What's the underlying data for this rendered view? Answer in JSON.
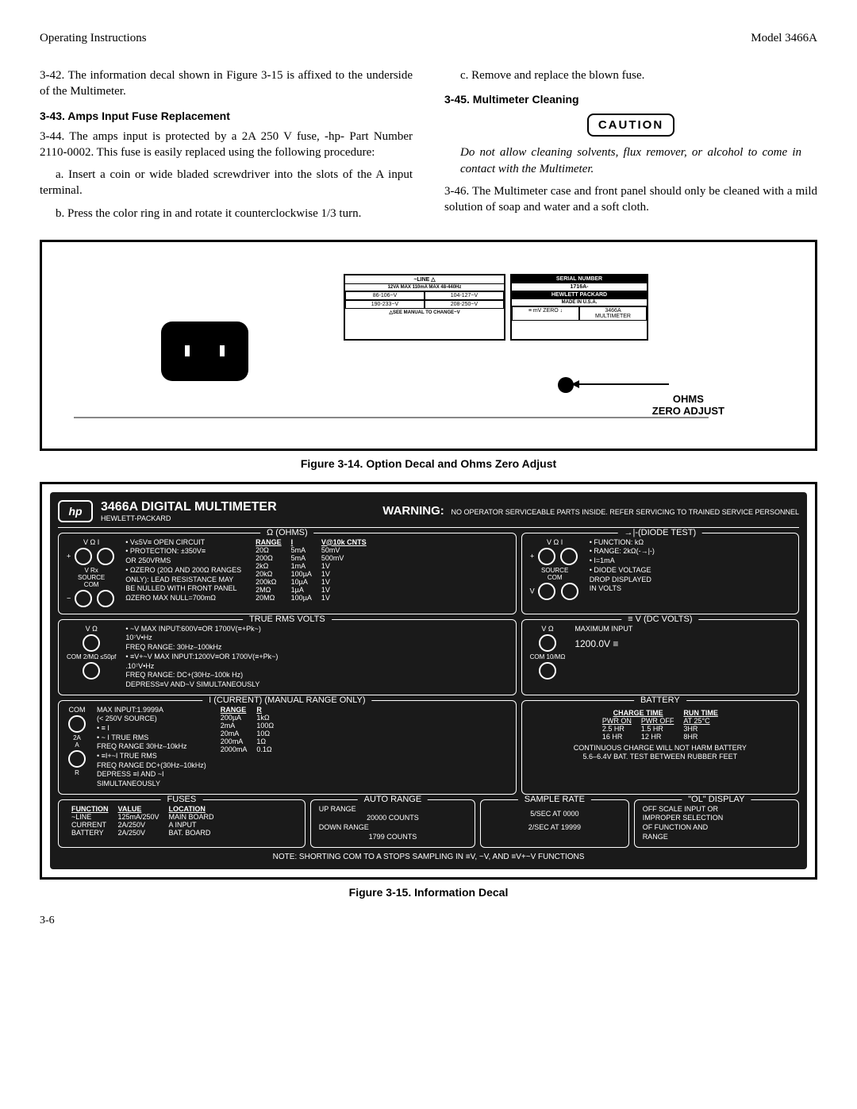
{
  "header": {
    "left": "Operating Instructions",
    "right": "Model 3466A"
  },
  "body": {
    "p342": "3-42. The information decal shown in Figure 3-15 is affixed to the underside of the Multimeter.",
    "h343": "3-43. Amps Input Fuse Replacement",
    "p344": "3-44. The amps input is protected by a 2A 250 V fuse, -hp- Part Number 2110-0002. This fuse is easily replaced using the following procedure:",
    "p344a": "a. Insert a coin or wide bladed screwdriver into the slots of the A input terminal.",
    "p344b": "b. Press the color ring in and rotate it counterclockwise 1/3 turn.",
    "p344c": "c. Remove and replace the blown fuse.",
    "h345": "3-45. Multimeter Cleaning",
    "caution": "CAUTION",
    "caution_body": "Do not allow cleaning solvents, flux remover, or alcohol to come in contact with the Multimeter.",
    "p346": "3-46. The Multimeter case and front panel should only be cleaned with a mild solution of soap and water and a soft cloth."
  },
  "fig314": {
    "caption": "Figure 3-14. Option Decal and Ohms Zero Adjust",
    "line_header": "~LINE △",
    "line_sub": "12VA MAX 110mA MAX 48-440Hz",
    "v1": "86-106~V",
    "v2": "104-127~V",
    "v3": "190-233~V",
    "v4": "208-250~V",
    "see_manual": "△SEE MANUAL TO CHANGE~V",
    "serial_h": "SERIAL NUMBER",
    "serial_v": "1716A-",
    "hp": "HEWLETT    PACKARD",
    "made": "MADE IN U.S.A.",
    "mvzero": "≡ mV ZERO ↓",
    "model": "3466A",
    "mult": "MULTIMETER",
    "ohms_label": "OHMS\nZERO ADJUST"
  },
  "fig315": {
    "caption": "Figure 3-15. Information Decal",
    "title": "3466A DIGITAL MULTIMETER",
    "subtitle": "HEWLETT-PACKARD",
    "warning_label": "WARNING:",
    "warning_text": "NO OPERATOR SERVICEABLE PARTS INSIDE. REFER SERVICING TO TRAINED SERVICE PERSONNEL",
    "ohms": {
      "title": "Ω (OHMS)",
      "jack_labels": "V Ω    I",
      "source": "SOURCE",
      "com": "COM",
      "vrx": "V Rx",
      "notes": [
        "• V≤5V≡ OPEN CIRCUIT",
        "• PROTECTION: ±350V≡",
        "  OR 250VRMS",
        "• ΩZERO (20Ω AND 200Ω RANGES",
        "  ONLY): LEAD RESISTANCE MAY",
        "  BE NULLED WITH FRONT PANEL",
        "  ΩZERO MAX NULL=700mΩ"
      ],
      "table": {
        "headers": [
          "RANGE",
          "I",
          "V@10k CNTS"
        ],
        "rows": [
          [
            "20Ω",
            "5mA",
            "50mV"
          ],
          [
            "200Ω",
            "5mA",
            "500mV"
          ],
          [
            "2kΩ",
            "1mA",
            "1V"
          ],
          [
            "20kΩ",
            "100µA",
            "1V"
          ],
          [
            "200kΩ",
            "10µA",
            "1V"
          ],
          [
            "2MΩ",
            "1µA",
            "1V"
          ],
          [
            "20MΩ",
            "100µA",
            "1V"
          ]
        ]
      }
    },
    "diode": {
      "title": "→|-(DIODE TEST)",
      "notes": [
        "• FUNCTION: kΩ",
        "• RANGE: 2kΩ(-→|-)",
        "• I=1mA",
        "• DIODE VOLTAGE",
        "  DROP DISPLAYED",
        "  IN VOLTS"
      ]
    },
    "trms": {
      "title": "TRUE RMS VOLTS",
      "lines": [
        "• ~V    MAX INPUT:600V≡OR 1700V(≡+Pk~)",
        "         10⁷V•Hz",
        "         FREQ RANGE: 30Hz–100kHz",
        "• ≡V+~V MAX INPUT:1200V≡OR 1700V(≡+Pk~)",
        "         .10⁷V•Hz",
        "         FREQ RANGE: DC+(30Hz–100k Hz)",
        "         DEPRESS≡V AND~V SIMULTANEOUSLY"
      ],
      "res": "2  ≤50\nMΩ  pf"
    },
    "dcv": {
      "title": "≡ V (DC VOLTS)",
      "max": "MAXIMUM INPUT",
      "val": "1200.0V ≡",
      "res": "10\nMΩ"
    },
    "current": {
      "title": "I (CURRENT) (MANUAL RANGE ONLY)",
      "lines": [
        "MAX INPUT:1.9999A",
        "(< 250V SOURCE)",
        "• ≡ I",
        "• ~ I TRUE RMS",
        "      FREQ RANGE 30Hz–10kHz",
        "• ≡I+~I TRUE RMS",
        "      FREQ RANGE DC+(30Hz–10kHz)",
        "      DEPRESS ≡I AND ~I",
        "      SIMULTANEOUSLY"
      ],
      "table": {
        "headers": [
          "RANGE",
          "R"
        ],
        "rows": [
          [
            "200µA",
            "1kΩ"
          ],
          [
            "2mA",
            "100Ω"
          ],
          [
            "20mA",
            "10Ω"
          ],
          [
            "200mA",
            "1Ω"
          ],
          [
            "2000mA",
            "0.1Ω"
          ]
        ]
      }
    },
    "battery": {
      "title": "BATTERY",
      "headers": [
        "CHARGE TIME",
        "",
        "RUN TIME"
      ],
      "sub": [
        "PWR ON",
        "PWR OFF",
        "AT 25°C"
      ],
      "rows": [
        [
          "2.5 HR",
          "1.5 HR",
          "3HR"
        ],
        [
          "16 HR",
          "12 HR",
          "8HR"
        ]
      ],
      "note1": "CONTINUOUS CHARGE WILL NOT HARM BATTERY",
      "note2": "5.6–6.4V BAT. TEST BETWEEN RUBBER FEET"
    },
    "fuses": {
      "title": "FUSES",
      "headers": [
        "FUNCTION",
        "VALUE",
        "LOCATION"
      ],
      "rows": [
        [
          "~LINE",
          "125mA/250V",
          "MAIN BOARD"
        ],
        [
          "CURRENT",
          "2A/250V",
          "A INPUT"
        ],
        [
          "BATTERY",
          "2A/250V",
          "BAT. BOARD"
        ]
      ]
    },
    "autorange": {
      "title": "AUTO RANGE",
      "l1": "UP RANGE",
      "l2": "20000 COUNTS",
      "l3": "DOWN RANGE",
      "l4": "1799 COUNTS"
    },
    "sample": {
      "title": "SAMPLE RATE",
      "l1": "5/SEC AT 0000",
      "l2": "2/SEC AT 19999"
    },
    "ol": {
      "title": "\"OL\" DISPLAY",
      "l1": "OFF SCALE INPUT OR",
      "l2": "IMPROPER SELECTION",
      "l3": "OF FUNCTION AND",
      "l4": "RANGE"
    },
    "footer": "NOTE: SHORTING COM TO A STOPS SAMPLING IN ≡V, ~V, AND ≡V+~V FUNCTIONS"
  },
  "page": "3-6"
}
